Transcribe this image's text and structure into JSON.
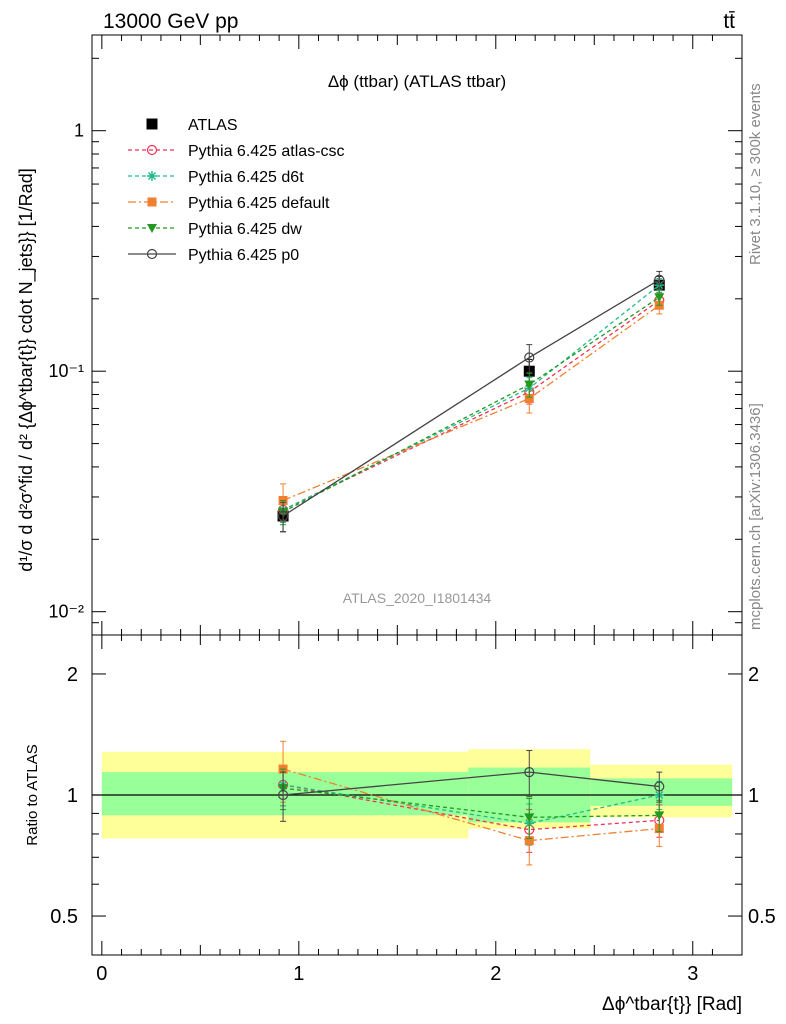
{
  "header": {
    "left": "13000 GeV pp",
    "right": "tt̄"
  },
  "side_labels": {
    "rivet": "Rivet 3.1.10, ≥ 300k events",
    "mcplots": "mcplots.cern.ch [arXiv:1306.3436]"
  },
  "chart_data": [
    {
      "type": "scatter",
      "title": "Δϕ (ttbar) (ATLAS ttbar)",
      "watermark": "ATLAS_2020_I1801434",
      "ylabel": "d¹/σ d d²σ^fid / d² {Δϕ^tbar{t}} cdot N_jets}} [1/Rad]",
      "y_scale": "log",
      "ylim": [
        0.008,
        2.5
      ],
      "xlim": [
        -0.05,
        3.25
      ],
      "y_ticks": [
        0.01,
        0.1,
        1
      ],
      "y_tick_labels": [
        "10⁻²",
        "10⁻¹",
        "1"
      ],
      "legend_position": "top-left",
      "series": [
        {
          "name": "ATLAS",
          "color": "#000000",
          "x": [
            0.92,
            2.17,
            2.83
          ],
          "y": [
            0.025,
            0.1,
            0.228
          ],
          "err": [
            0.0035,
            0.012,
            0.02
          ]
        },
        {
          "name": "Pythia 6.425 atlas-csc",
          "color": "#ee3355",
          "x": [
            0.92,
            2.17,
            2.83
          ],
          "y": [
            0.0265,
            0.082,
            0.197
          ],
          "err": [
            0.003,
            0.009,
            0.015
          ]
        },
        {
          "name": "Pythia 6.425 d6t",
          "color": "#22bb88",
          "x": [
            0.92,
            2.17,
            2.83
          ],
          "y": [
            0.0265,
            0.085,
            0.228
          ],
          "err": [
            0.003,
            0.009,
            0.015
          ]
        },
        {
          "name": "Pythia 6.425 default",
          "color": "#f08030",
          "x": [
            0.92,
            2.17,
            2.83
          ],
          "y": [
            0.029,
            0.077,
            0.188
          ],
          "err": [
            0.005,
            0.01,
            0.015
          ]
        },
        {
          "name": "Pythia 6.425 dw",
          "color": "#229922",
          "x": [
            0.92,
            2.17,
            2.83
          ],
          "y": [
            0.026,
            0.088,
            0.203
          ],
          "err": [
            0.003,
            0.01,
            0.015
          ]
        },
        {
          "name": "Pythia 6.425 p0",
          "color": "#444444",
          "x": [
            0.92,
            2.17,
            2.83
          ],
          "y": [
            0.025,
            0.114,
            0.24
          ],
          "err": [
            0.0035,
            0.015,
            0.02
          ]
        }
      ]
    },
    {
      "type": "scatter",
      "title": "",
      "ylabel": "Ratio to ATLAS",
      "xlabel": "Δϕ^tbar{t}} [Rad]",
      "xlim": [
        -0.05,
        3.25
      ],
      "ylim": [
        0.4,
        2.5
      ],
      "y_scale": "log",
      "x_ticks": [
        0,
        1,
        2,
        3
      ],
      "x_tick_labels": [
        "0",
        "1",
        "2",
        "3"
      ],
      "y_ticks": [
        0.5,
        1,
        2
      ],
      "y_tick_labels": [
        "0.5",
        "1",
        "2"
      ],
      "bands": [
        {
          "x": [
            0,
            1.86
          ],
          "yellow": [
            0.78,
            1.28
          ],
          "green": [
            0.89,
            1.14
          ]
        },
        {
          "x": [
            1.86,
            2.48
          ],
          "yellow": [
            0.825,
            1.3
          ],
          "green": [
            0.855,
            1.17
          ]
        },
        {
          "x": [
            2.48,
            3.2
          ],
          "yellow": [
            0.88,
            1.19
          ],
          "green": [
            0.94,
            1.1
          ]
        }
      ],
      "series": [
        {
          "name": "Pythia 6.425 atlas-csc",
          "color": "#ee3355",
          "x": [
            0.92,
            2.17,
            2.83
          ],
          "y": [
            1.06,
            0.82,
            0.865
          ],
          "err": [
            0.12,
            0.1,
            0.08
          ]
        },
        {
          "name": "Pythia 6.425 d6t",
          "color": "#22bb88",
          "x": [
            0.92,
            2.17,
            2.83
          ],
          "y": [
            1.06,
            0.85,
            1.0
          ],
          "err": [
            0.12,
            0.1,
            0.08
          ]
        },
        {
          "name": "Pythia 6.425 default",
          "color": "#f08030",
          "x": [
            0.92,
            2.17,
            2.83
          ],
          "y": [
            1.16,
            0.77,
            0.825
          ],
          "err": [
            0.2,
            0.1,
            0.08
          ]
        },
        {
          "name": "Pythia 6.425 dw",
          "color": "#229922",
          "x": [
            0.92,
            2.17,
            2.83
          ],
          "y": [
            1.04,
            0.88,
            0.89
          ],
          "err": [
            0.12,
            0.1,
            0.08
          ]
        },
        {
          "name": "Pythia 6.425 p0",
          "color": "#444444",
          "x": [
            0.92,
            2.17,
            2.83
          ],
          "y": [
            1.0,
            1.14,
            1.05
          ],
          "err": [
            0.14,
            0.15,
            0.09
          ]
        }
      ]
    }
  ]
}
